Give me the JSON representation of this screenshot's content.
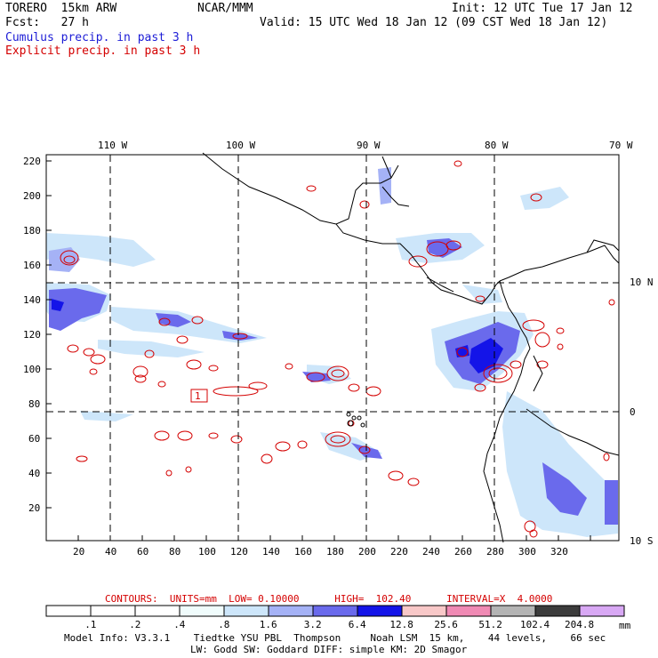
{
  "header": {
    "model": "TORERO  15km ARW",
    "center": "NCAR/MMM",
    "init": "Init: 12 UTC Tue 17 Jan 12",
    "fcst": "Fcst:   27 h",
    "valid": "Valid: 15 UTC Wed 18 Jan 12 (09 CST Wed 18 Jan 12)",
    "field1": "Cumulus precip. in past 3 h",
    "field2": "Explicit precip. in past 3 h"
  },
  "colors": {
    "field1": "#1c1cd6",
    "field2": "#d40000",
    "contour": "#d40000",
    "coast": "#000000"
  },
  "map": {
    "top_lon_labels": [
      "110 W",
      "100 W",
      "90 W",
      "80 W",
      "70 W"
    ],
    "right_lat_labels": [
      "10 N",
      "0",
      "10 S"
    ],
    "left_y_ticks": [
      "220",
      "200",
      "180",
      "160",
      "140",
      "120",
      "100",
      "80",
      "60",
      "40",
      "20"
    ],
    "bottom_x_ticks": [
      "20",
      "40",
      "60",
      "80",
      "100",
      "120",
      "140",
      "160",
      "180",
      "200",
      "220",
      "240",
      "260",
      "280",
      "300",
      "320"
    ],
    "label_box": "1"
  },
  "footer": {
    "contours": "CONTOURS:  UNITS=mm  LOW= 0.10000      HIGH=  102.40      INTERVAL=X  4.0000",
    "unit": "mm",
    "model_info_1": "Model Info: V3.3.1    Tiedtke YSU PBL  Thompson     Noah LSM  15 km,    44 levels,    66 sec",
    "model_info_2": "LW: Godd SW: Goddard DIFF: simple KM: 2D Smagor"
  },
  "colorbar": {
    "labels": [
      ".1",
      ".2",
      ".4",
      ".8",
      "1.6",
      "3.2",
      "6.4",
      "12.8",
      "25.6",
      "51.2",
      "102.4",
      "204.8"
    ],
    "colors": [
      "#ffffff",
      "#ffffff",
      "#ffffff",
      "#f0fcfc",
      "#cde6fa",
      "#a5b2f6",
      "#6a6aec",
      "#1414e8",
      "#f8c8c8",
      "#f08ab4",
      "#b4b4b4",
      "#3c3c3c",
      "#d8a8f4"
    ]
  }
}
